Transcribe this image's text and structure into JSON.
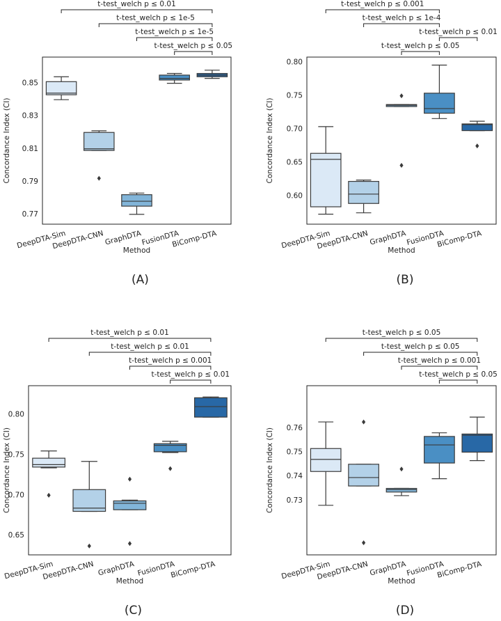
{
  "chart_data": [
    {
      "type": "box",
      "panel_label": "(A)",
      "xlabel": "Method",
      "ylabel": "Concordance Index (CI)",
      "categories": [
        "DeepDTA-Sim",
        "DeepDTA-CNN",
        "GraphDTA",
        "FusionDTA",
        "BiComp-DTA"
      ],
      "colors": [
        "#dbe9f6",
        "#b3d1e8",
        "#82b5d9",
        "#4a8fc4",
        "#2868a6"
      ],
      "boxes": [
        {
          "min": 0.84,
          "q1": 0.843,
          "median": 0.844,
          "q3": 0.851,
          "max": 0.854,
          "outliers": []
        },
        {
          "min": 0.809,
          "q1": 0.809,
          "median": 0.81,
          "q3": 0.82,
          "max": 0.821,
          "outliers": [
            0.792
          ]
        },
        {
          "min": 0.77,
          "q1": 0.775,
          "median": 0.778,
          "q3": 0.782,
          "max": 0.783,
          "outliers": []
        },
        {
          "min": 0.85,
          "q1": 0.852,
          "median": 0.853,
          "q3": 0.855,
          "max": 0.856,
          "outliers": []
        },
        {
          "min": 0.853,
          "q1": 0.854,
          "median": 0.855,
          "q3": 0.856,
          "max": 0.858,
          "outliers": []
        }
      ],
      "ylim": [
        0.764,
        0.866
      ],
      "yticks": [
        0.77,
        0.79,
        0.81,
        0.83,
        0.85
      ],
      "comparisons": [
        {
          "text": "t-test_welch p ≤ 0.01",
          "pair": [
            "DeepDTA-Sim",
            "BiComp-DTA"
          ]
        },
        {
          "text": "t-test_welch p ≤ 1e-5",
          "pair": [
            "DeepDTA-CNN",
            "BiComp-DTA"
          ]
        },
        {
          "text": "t-test_welch p ≤ 1e-5",
          "pair": [
            "GraphDTA",
            "BiComp-DTA"
          ]
        },
        {
          "text": "t-test_welch p ≤ 0.05",
          "pair": [
            "FusionDTA",
            "BiComp-DTA"
          ]
        }
      ]
    },
    {
      "type": "box",
      "panel_label": "(B)",
      "xlabel": "Method",
      "ylabel": "Concordance Index (CI)",
      "categories": [
        "DeepDTA-Sim",
        "DeepDTA-CNN",
        "GraphDTA",
        "FusionDTA",
        "BiComp-DTA"
      ],
      "colors": [
        "#dbe9f6",
        "#b3d1e8",
        "#82b5d9",
        "#4a8fc4",
        "#2868a6"
      ],
      "boxes": [
        {
          "min": 0.573,
          "q1": 0.584,
          "median": 0.655,
          "q3": 0.664,
          "max": 0.704,
          "outliers": []
        },
        {
          "min": 0.575,
          "q1": 0.589,
          "median": 0.603,
          "q3": 0.622,
          "max": 0.624,
          "outliers": []
        },
        {
          "min": 0.734,
          "q1": 0.734,
          "median": 0.736,
          "q3": 0.737,
          "max": 0.737,
          "outliers": [
            0.75,
            0.646
          ]
        },
        {
          "min": 0.716,
          "q1": 0.724,
          "median": 0.731,
          "q3": 0.754,
          "max": 0.796,
          "outliers": []
        },
        {
          "min": 0.698,
          "q1": 0.698,
          "median": 0.707,
          "q3": 0.708,
          "max": 0.712,
          "outliers": [
            0.675
          ]
        }
      ],
      "ylim": [
        0.558,
        0.808
      ],
      "yticks": [
        {
          "value": 0.6,
          "label": "0.60"
        },
        0.65,
        {
          "value": 0.7,
          "label": "0.70"
        },
        0.75,
        {
          "value": 0.8,
          "label": "0.80"
        }
      ],
      "comparisons": [
        {
          "text": "t-test_welch p ≤ 0.001",
          "pair": [
            "DeepDTA-Sim",
            "FusionDTA"
          ]
        },
        {
          "text": "t-test_welch p ≤ 1e-4",
          "pair": [
            "DeepDTA-CNN",
            "FusionDTA"
          ]
        },
        {
          "text": "t-test_welch p ≤ 0.01",
          "pair": [
            "FusionDTA",
            "BiComp-DTA"
          ]
        },
        {
          "text": "t-test_welch p ≤ 0.05",
          "pair": [
            "GraphDTA",
            "FusionDTA"
          ]
        }
      ]
    },
    {
      "type": "box",
      "panel_label": "(C)",
      "xlabel": "Method",
      "ylabel": "Concordance Index (CI)",
      "categories": [
        "DeepDTA-Sim",
        "DeepDTA-CNN",
        "GraphDTA",
        "FusionDTA",
        "BiComp-DTA"
      ],
      "colors": [
        "#dbe9f6",
        "#b3d1e8",
        "#82b5d9",
        "#4a8fc4",
        "#2868a6"
      ],
      "boxes": [
        {
          "min": 0.734,
          "q1": 0.735,
          "median": 0.738,
          "q3": 0.746,
          "max": 0.755,
          "outliers": [
            0.7
          ]
        },
        {
          "min": 0.68,
          "q1": 0.68,
          "median": 0.684,
          "q3": 0.707,
          "max": 0.742,
          "outliers": [
            0.637
          ]
        },
        {
          "min": 0.682,
          "q1": 0.682,
          "median": 0.69,
          "q3": 0.693,
          "max": 0.694,
          "outliers": [
            0.72,
            0.64
          ]
        },
        {
          "min": 0.753,
          "q1": 0.754,
          "median": 0.762,
          "q3": 0.764,
          "max": 0.767,
          "outliers": [
            0.733
          ]
        },
        {
          "min": 0.797,
          "q1": 0.797,
          "median": 0.81,
          "q3": 0.821,
          "max": 0.822,
          "outliers": []
        }
      ],
      "ylim": [
        0.626,
        0.836
      ],
      "yticks": [
        0.65,
        {
          "value": 0.7,
          "label": "0.70"
        },
        0.75,
        {
          "value": 0.8,
          "label": "0.80"
        }
      ],
      "comparisons": [
        {
          "text": "t-test_welch p ≤ 0.01",
          "pair": [
            "DeepDTA-Sim",
            "BiComp-DTA"
          ]
        },
        {
          "text": "t-test_welch p ≤ 0.01",
          "pair": [
            "DeepDTA-CNN",
            "BiComp-DTA"
          ]
        },
        {
          "text": "t-test_welch p ≤ 0.001",
          "pair": [
            "GraphDTA",
            "BiComp-DTA"
          ]
        },
        {
          "text": "t-test_welch p ≤ 0.01",
          "pair": [
            "FusionDTA",
            "BiComp-DTA"
          ]
        }
      ]
    },
    {
      "type": "box",
      "panel_label": "(D)",
      "xlabel": "Method",
      "ylabel": "Concordance Index (CI)",
      "categories": [
        "DeepDTA-Sim",
        "DeepDTA-CNN",
        "GraphDTA",
        "FusionDTA",
        "BiComp-DTA"
      ],
      "colors": [
        "#dbe9f6",
        "#b3d1e8",
        "#82b5d9",
        "#4a8fc4",
        "#2868a6"
      ],
      "boxes": [
        {
          "min": 0.728,
          "q1": 0.742,
          "median": 0.747,
          "q3": 0.7515,
          "max": 0.7625,
          "outliers": []
        },
        {
          "min": 0.736,
          "q1": 0.736,
          "median": 0.7395,
          "q3": 0.745,
          "max": 0.745,
          "outliers": [
            0.7625,
            0.7125
          ]
        },
        {
          "min": 0.732,
          "q1": 0.7335,
          "median": 0.7345,
          "q3": 0.735,
          "max": 0.735,
          "outliers": [
            0.743
          ]
        },
        {
          "min": 0.739,
          "q1": 0.7455,
          "median": 0.753,
          "q3": 0.7565,
          "max": 0.758,
          "outliers": []
        },
        {
          "min": 0.7465,
          "q1": 0.75,
          "median": 0.757,
          "q3": 0.7575,
          "max": 0.7645,
          "outliers": []
        }
      ],
      "ylim": [
        0.7075,
        0.7775
      ],
      "yticks": [
        0.73,
        0.74,
        0.75,
        0.76
      ],
      "comparisons": [
        {
          "text": "t-test_welch p ≤ 0.05",
          "pair": [
            "DeepDTA-Sim",
            "BiComp-DTA"
          ]
        },
        {
          "text": "t-test_welch p ≤ 0.05",
          "pair": [
            "DeepDTA-CNN",
            "BiComp-DTA"
          ]
        },
        {
          "text": "t-test_welch p ≤ 0.001",
          "pair": [
            "GraphDTA",
            "BiComp-DTA"
          ]
        },
        {
          "text": "t-test_welch p ≤ 0.05",
          "pair": [
            "FusionDTA",
            "BiComp-DTA"
          ]
        }
      ]
    }
  ]
}
